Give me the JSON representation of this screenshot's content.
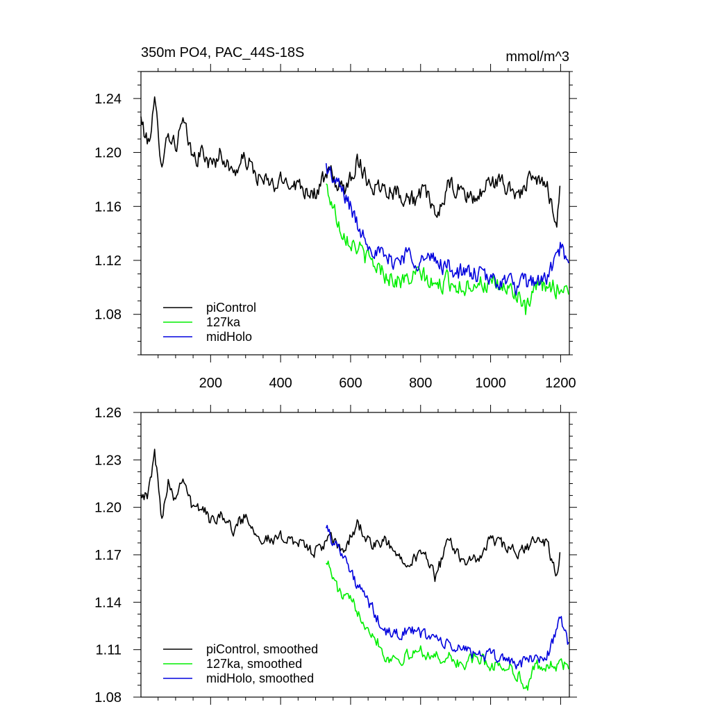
{
  "chart_data": [
    {
      "type": "line",
      "title": "350m PO4, PAC_44S-18S",
      "units": "mmol/m^3",
      "xlim": [
        1,
        1225
      ],
      "ylim": [
        1.05,
        1.26
      ],
      "xticks": [
        200,
        400,
        600,
        800,
        1000,
        1200
      ],
      "xtick_labels": [
        "200",
        "400",
        "600",
        "800",
        "1000",
        "1200"
      ],
      "yticks": [
        1.08,
        1.12,
        1.16,
        1.2,
        1.24
      ],
      "ytick_labels": [
        "1.08",
        "1.12",
        "1.16",
        "1.20",
        "1.24"
      ],
      "legend_position": "bottom-left",
      "series": [
        {
          "name": "piControl",
          "color": "#000000",
          "x": [
            1,
            20,
            40,
            60,
            80,
            100,
            120,
            150,
            180,
            200,
            230,
            260,
            300,
            340,
            380,
            420,
            460,
            500,
            540,
            580,
            620,
            660,
            700,
            740,
            780,
            820,
            840,
            880,
            920,
            960,
            1000,
            1040,
            1080,
            1120,
            1160,
            1190,
            1200
          ],
          "values": [
            1.225,
            1.205,
            1.235,
            1.195,
            1.215,
            1.205,
            1.222,
            1.195,
            1.2,
            1.19,
            1.2,
            1.185,
            1.195,
            1.18,
            1.175,
            1.18,
            1.175,
            1.17,
            1.185,
            1.17,
            1.195,
            1.175,
            1.175,
            1.17,
            1.165,
            1.17,
            1.15,
            1.175,
            1.17,
            1.165,
            1.18,
            1.175,
            1.17,
            1.18,
            1.175,
            1.15,
            1.18
          ]
        },
        {
          "name": "127ka",
          "color": "#00ee00",
          "x": [
            530,
            550,
            570,
            600,
            620,
            650,
            680,
            700,
            730,
            760,
            800,
            840,
            880,
            920,
            960,
            1000,
            1040,
            1080,
            1100,
            1130,
            1160,
            1190,
            1225
          ],
          "values": [
            1.175,
            1.16,
            1.145,
            1.135,
            1.13,
            1.12,
            1.115,
            1.11,
            1.105,
            1.105,
            1.11,
            1.1,
            1.105,
            1.1,
            1.105,
            1.1,
            1.1,
            1.095,
            1.08,
            1.1,
            1.1,
            1.1,
            1.1
          ]
        },
        {
          "name": "midHolo",
          "color": "#0000dd",
          "x": [
            530,
            550,
            580,
            600,
            620,
            650,
            680,
            700,
            730,
            760,
            800,
            840,
            880,
            920,
            960,
            1000,
            1040,
            1080,
            1120,
            1160,
            1200,
            1225
          ],
          "values": [
            1.19,
            1.18,
            1.17,
            1.16,
            1.145,
            1.135,
            1.125,
            1.12,
            1.12,
            1.125,
            1.12,
            1.12,
            1.115,
            1.11,
            1.11,
            1.105,
            1.105,
            1.1,
            1.105,
            1.105,
            1.13,
            1.11
          ]
        }
      ]
    },
    {
      "type": "line",
      "title": "",
      "xlim": [
        1,
        1225
      ],
      "ylim": [
        1.08,
        1.26
      ],
      "xticks": [
        200,
        400,
        600,
        800,
        1000,
        1200
      ],
      "yticks": [
        1.08,
        1.11,
        1.14,
        1.17,
        1.2,
        1.23,
        1.26
      ],
      "ytick_labels": [
        "1.08",
        "1.11",
        "1.14",
        "1.17",
        "1.20",
        "1.23",
        "1.26"
      ],
      "legend_position": "bottom-left",
      "series": [
        {
          "name": "piControl, smoothed",
          "color": "#000000",
          "x": [
            1,
            20,
            40,
            60,
            80,
            100,
            120,
            150,
            180,
            200,
            230,
            260,
            300,
            340,
            380,
            420,
            460,
            500,
            540,
            580,
            620,
            660,
            700,
            740,
            780,
            820,
            840,
            880,
            920,
            960,
            1000,
            1040,
            1080,
            1120,
            1160,
            1190,
            1200
          ],
          "values": [
            1.212,
            1.205,
            1.235,
            1.195,
            1.218,
            1.205,
            1.222,
            1.198,
            1.2,
            1.19,
            1.198,
            1.185,
            1.195,
            1.182,
            1.178,
            1.182,
            1.176,
            1.172,
            1.18,
            1.172,
            1.19,
            1.175,
            1.178,
            1.168,
            1.168,
            1.17,
            1.155,
            1.178,
            1.168,
            1.165,
            1.18,
            1.175,
            1.17,
            1.178,
            1.178,
            1.155,
            1.173
          ]
        },
        {
          "name": "127ka, smoothed",
          "color": "#00ee00",
          "x": [
            530,
            550,
            570,
            600,
            620,
            650,
            680,
            700,
            730,
            760,
            800,
            840,
            880,
            920,
            960,
            1000,
            1040,
            1080,
            1100,
            1130,
            1160,
            1190,
            1225
          ],
          "values": [
            1.168,
            1.155,
            1.145,
            1.14,
            1.135,
            1.125,
            1.115,
            1.105,
            1.105,
            1.105,
            1.11,
            1.105,
            1.105,
            1.1,
            1.105,
            1.1,
            1.1,
            1.095,
            1.083,
            1.1,
            1.1,
            1.1,
            1.1
          ]
        },
        {
          "name": "midHolo, smoothed",
          "color": "#0000dd",
          "x": [
            530,
            550,
            580,
            600,
            620,
            650,
            680,
            700,
            730,
            760,
            800,
            840,
            880,
            920,
            960,
            1000,
            1040,
            1080,
            1120,
            1160,
            1200,
            1225
          ],
          "values": [
            1.19,
            1.178,
            1.172,
            1.158,
            1.15,
            1.14,
            1.128,
            1.12,
            1.12,
            1.122,
            1.12,
            1.118,
            1.112,
            1.11,
            1.108,
            1.105,
            1.105,
            1.1,
            1.105,
            1.105,
            1.13,
            1.112
          ]
        }
      ]
    }
  ]
}
